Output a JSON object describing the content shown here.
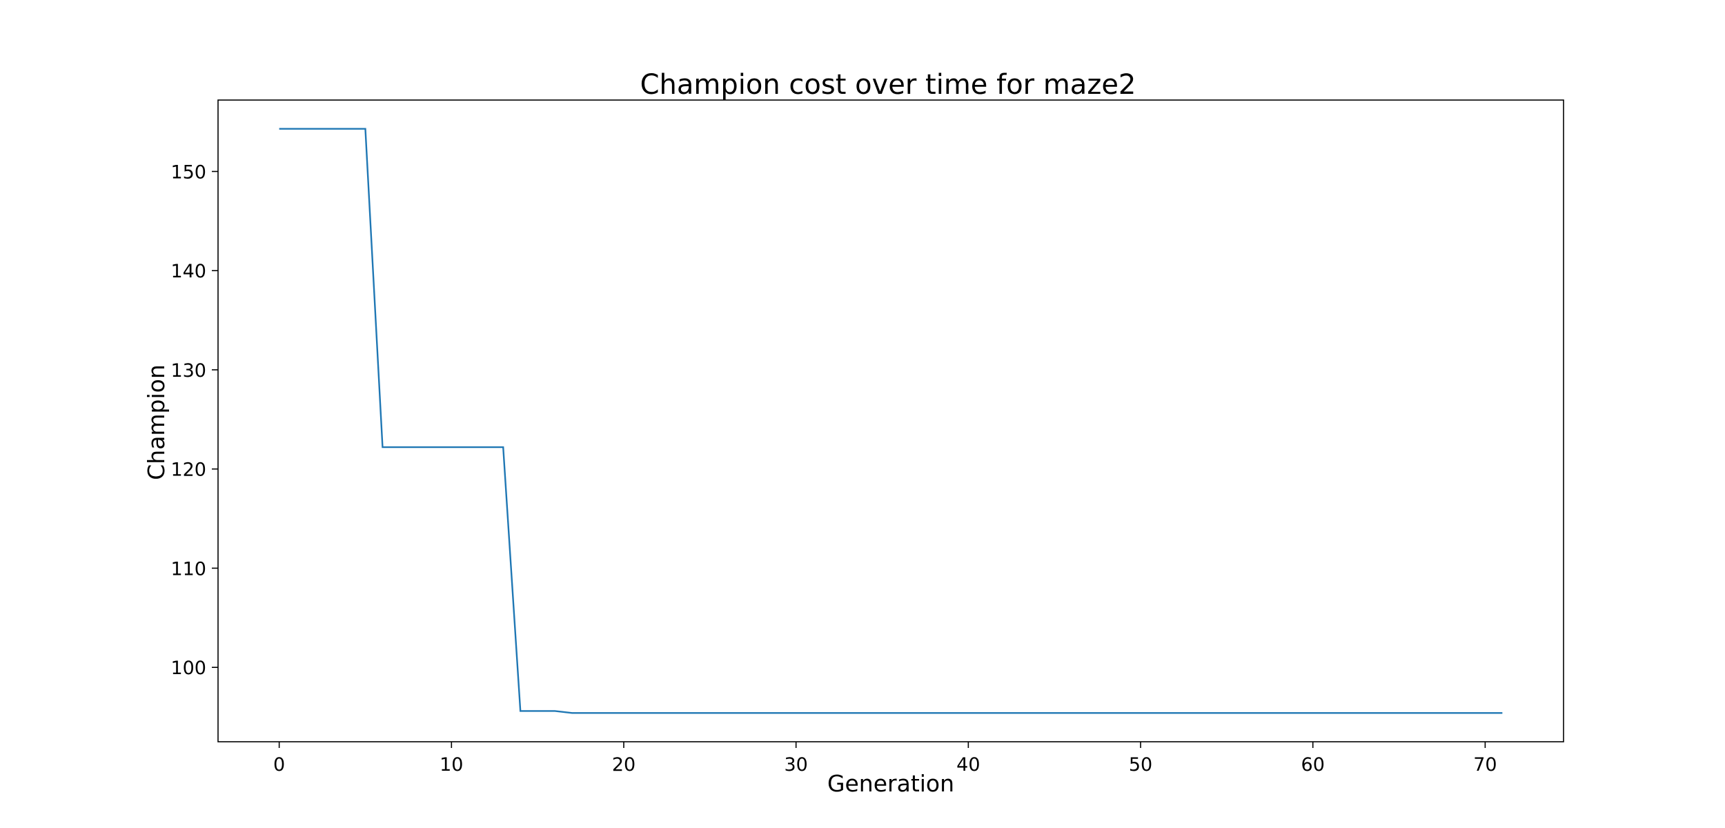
{
  "chart_data": {
    "type": "line",
    "title": "Champion cost over time for maze2",
    "xlabel": "Generation",
    "ylabel": "Champion",
    "xlim": [
      -3.55,
      74.55
    ],
    "ylim": [
      92.5,
      157.2
    ],
    "x_ticks": [
      0,
      10,
      20,
      30,
      40,
      50,
      60,
      70
    ],
    "y_ticks": [
      100,
      110,
      120,
      130,
      140,
      150
    ],
    "grid": false,
    "series": [
      {
        "color": "#1f77b4",
        "points": [
          [
            0,
            154.3
          ],
          [
            5,
            154.3
          ],
          [
            6,
            122.2
          ],
          [
            13,
            122.2
          ],
          [
            14,
            95.6
          ],
          [
            16,
            95.6
          ],
          [
            17,
            95.4
          ],
          [
            71,
            95.4
          ]
        ]
      }
    ]
  }
}
